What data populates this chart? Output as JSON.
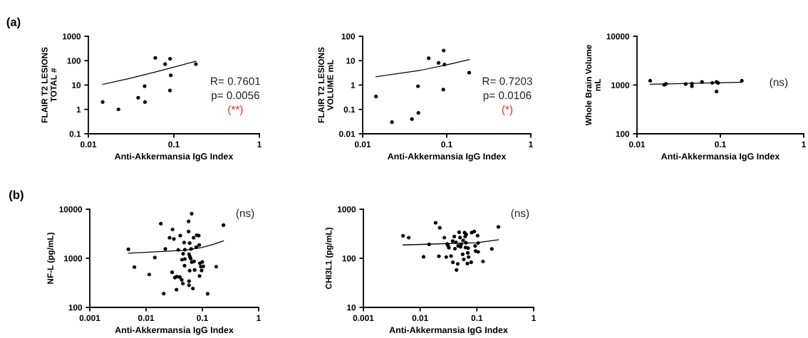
{
  "chart_data": [
    {
      "type": "scatter",
      "title": "(a)",
      "xlabel": "Anti-Akkermansia IgG Index",
      "ylabel": "FLAIR T2 LESIONS\nTOTAL #",
      "log": "xy",
      "xlim": [
        0.01,
        1
      ],
      "xticks": [
        0.01,
        0.1,
        1
      ],
      "ylim": [
        0.1,
        1000
      ],
      "yticks": [
        0.1,
        1,
        10,
        100,
        1000
      ],
      "line_style": "solid",
      "annotations": [
        "R= 0.7601",
        "p= 0.0056",
        "(**)"
      ],
      "series": [
        {
          "color": "#000000",
          "marker": "circle",
          "x": [
            0.0147,
            0.0225,
            0.0383,
            0.0455,
            0.046,
            0.0607,
            0.079,
            0.0903,
            0.092,
            0.09,
            0.181
          ],
          "values": [
            2,
            1,
            3,
            9,
            2,
            130,
            72,
            120,
            25,
            6,
            72
          ]
        },
        {
          "type": "line",
          "color": "#000000",
          "x": [
            0.0147,
            0.03,
            0.06,
            0.1,
            0.181
          ],
          "values": [
            10.7,
            18.5,
            33.7,
            54,
            95
          ]
        }
      ]
    },
    {
      "type": "scatter",
      "xlabel": "Anti-Akkermansia IgG Index",
      "ylabel": "FLAIR T2 LESIONS\nVOLUME mL",
      "log": "xy",
      "xlim": [
        0.01,
        1
      ],
      "xticks": [
        0.01,
        0.1,
        1
      ],
      "ylim": [
        0.01,
        100
      ],
      "yticks": [
        0.01,
        0.1,
        1,
        10,
        100
      ],
      "line_style": "solid",
      "annotations": [
        "R= 0.7203",
        "p= 0.0106",
        "(*)"
      ],
      "series": [
        {
          "color": "#000000",
          "marker": "circle",
          "x": [
            0.0144,
            0.0223,
            0.0385,
            0.0455,
            0.046,
            0.061,
            0.08,
            0.092,
            0.094,
            0.091,
            0.185
          ],
          "values": [
            0.34,
            0.03,
            0.04,
            0.89,
            0.072,
            12.6,
            8.1,
            26,
            7,
            0.65,
            3.2
          ]
        },
        {
          "type": "line",
          "color": "#000000",
          "x": [
            0.0144,
            0.05,
            0.1,
            0.185
          ],
          "values": [
            2.2,
            4.1,
            6.7,
            11.1
          ]
        }
      ]
    },
    {
      "type": "scatter",
      "xlabel": "Anti-Akkermansia IgG Index",
      "ylabel": "Whole Brain Volume\nmL",
      "log": "xy",
      "xlim": [
        0.01,
        1
      ],
      "xticks": [
        0.01,
        0.1,
        1
      ],
      "ylim": [
        100,
        10000
      ],
      "yticks": [
        100,
        1000,
        10000
      ],
      "line_style": "solid",
      "annotations": [
        "(ns)"
      ],
      "series": [
        {
          "color": "#000000",
          "marker": "circle",
          "x": [
            0.0144,
            0.0212,
            0.0223,
            0.0384,
            0.0456,
            0.0456,
            0.0602,
            0.0798,
            0.09,
            0.094,
            0.09,
            0.181
          ],
          "values": [
            1225,
            1011,
            1058,
            1047,
            1066,
            944,
            1157,
            1107,
            1157,
            1100,
            738,
            1225
          ]
        },
        {
          "type": "line",
          "color": "#000000",
          "x": [
            0.0144,
            0.181
          ],
          "values": [
            1040,
            1140
          ]
        }
      ]
    },
    {
      "type": "scatter",
      "title": "(b)",
      "xlabel": "Anti-Akkermansia IgG Index",
      "ylabel": "NF-L (pg/mL)",
      "log": "xy",
      "xlim": [
        0.001,
        1
      ],
      "xticks": [
        0.001,
        0.01,
        0.1,
        1
      ],
      "ylim": [
        100,
        10000
      ],
      "yticks": [
        100,
        1000,
        10000
      ],
      "line_style": "solid",
      "annotations": [
        "(ns)"
      ],
      "series": [
        {
          "color": "#000000",
          "marker": "circle",
          "x": [
            0.00485,
            0.0062,
            0.0114,
            0.0143,
            0.0183,
            0.0206,
            0.022,
            0.0262,
            0.0295,
            0.029,
            0.0312,
            0.0325,
            0.0347,
            0.035,
            0.0373,
            0.0398,
            0.0405,
            0.043,
            0.045,
            0.0435,
            0.0455,
            0.0474,
            0.0483,
            0.049,
            0.049,
            0.057,
            0.057,
            0.058,
            0.0595,
            0.058,
            0.058,
            0.06,
            0.062,
            0.0646,
            0.063,
            0.065,
            0.0595,
            0.068,
            0.07,
            0.071,
            0.073,
            0.078,
            0.0795,
            0.086,
            0.088,
            0.089,
            0.09,
            0.094,
            0.097,
            0.1,
            0.104,
            0.124,
            0.176,
            0.237
          ],
          "values": [
            1528,
            661,
            468,
            1035,
            5060,
            191,
            1550,
            2615,
            3865,
            518,
            2475,
            405,
            229,
            423,
            1480,
            414,
            2890,
            363,
            306,
            935,
            1236,
            2090,
            707,
            967,
            1496,
            5650,
            3500,
            1210,
            2045,
            342,
            283,
            1081,
            990,
            8090,
            1550,
            836,
            560,
            242,
            2615,
            865,
            578,
            1690,
            2960,
            2890,
            1870,
            437,
            791,
            676,
            565,
            845,
            684,
            189,
            676,
            4730
          ]
        },
        {
          "type": "line",
          "color": "#000000",
          "x": [
            0.00485,
            0.05,
            0.1,
            0.15,
            0.237
          ],
          "values": [
            1265,
            1460,
            1670,
            1890,
            2260
          ]
        }
      ]
    },
    {
      "type": "scatter",
      "xlabel": "Anti-Akkermansia IgG Index",
      "ylabel": "CHI3L1 (pg/mL)",
      "log": "xy",
      "xlim": [
        0.001,
        1
      ],
      "xticks": [
        0.001,
        0.01,
        0.1,
        1
      ],
      "ylim": [
        10,
        1000
      ],
      "yticks": [
        10,
        100,
        1000
      ],
      "line_style": "solid",
      "annotations": [
        "(ns)"
      ],
      "series": [
        {
          "color": "#000000",
          "marker": "circle",
          "x": [
            0.005,
            0.0063,
            0.0115,
            0.0144,
            0.0187,
            0.0214,
            0.0222,
            0.0267,
            0.0288,
            0.03,
            0.031,
            0.032,
            0.035,
            0.0374,
            0.0378,
            0.04,
            0.041,
            0.0428,
            0.0437,
            0.0459,
            0.0467,
            0.0486,
            0.0505,
            0.0514,
            0.0528,
            0.0561,
            0.0572,
            0.0588,
            0.0606,
            0.0622,
            0.063,
            0.064,
            0.0647,
            0.068,
            0.069,
            0.07,
            0.0713,
            0.0792,
            0.0809,
            0.0897,
            0.093,
            0.095,
            0.103,
            0.105,
            0.105,
            0.128,
            0.183,
            0.239
          ],
          "values": [
            288,
            263,
            107,
            192,
            527,
            110,
            417,
            263,
            106,
            196,
            181,
            164,
            111,
            224,
            83,
            278,
            157,
            212,
            58,
            77,
            179,
            340,
            265,
            171,
            194,
            121,
            232,
            95,
            333,
            278,
            166,
            207,
            308,
            78,
            129,
            162,
            106,
            83,
            333,
            352,
            179,
            140,
            290,
            205,
            135,
            86,
            155,
            435
          ]
        },
        {
          "type": "line",
          "color": "#000000",
          "x": [
            0.005,
            0.1,
            0.239
          ],
          "values": [
            187,
            207,
            238
          ]
        }
      ]
    }
  ]
}
